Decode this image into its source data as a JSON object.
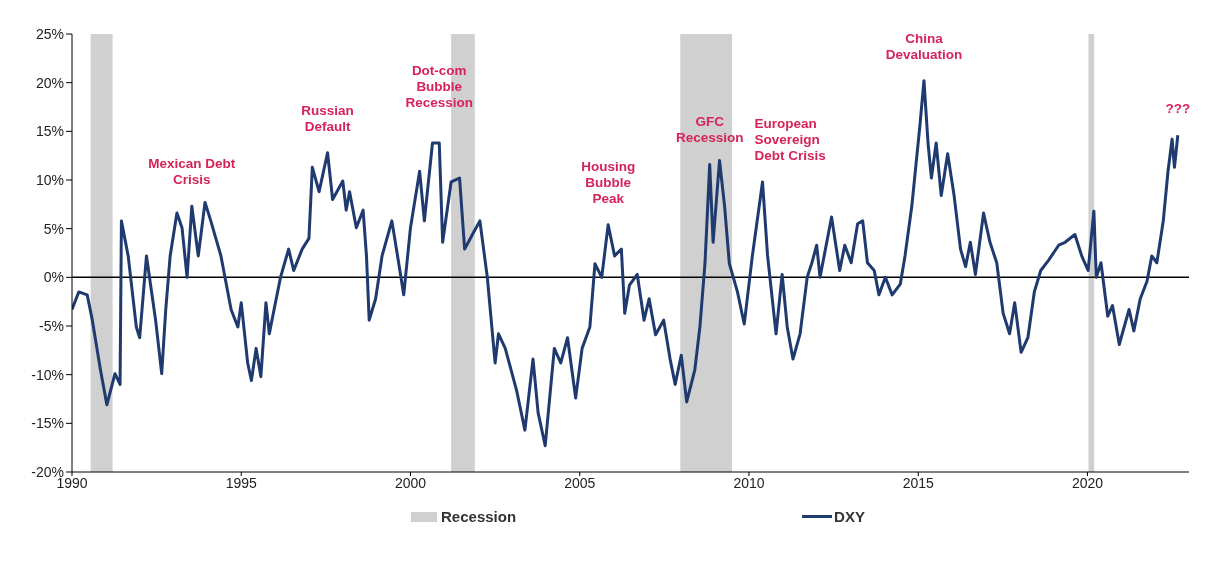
{
  "chart_data": {
    "type": "line",
    "xlim": [
      1990,
      2023
    ],
    "xticks": [
      1990,
      1995,
      2000,
      2005,
      2010,
      2015,
      2020
    ],
    "ylim": [
      -20,
      25
    ],
    "yticks": [
      {
        "value": -20,
        "label": "-20%"
      },
      {
        "value": -15,
        "label": "-15%"
      },
      {
        "value": -10,
        "label": "-10%"
      },
      {
        "value": -5,
        "label": "-5%"
      },
      {
        "value": 0,
        "label": "0%"
      },
      {
        "value": 5,
        "label": "5%"
      },
      {
        "value": 10,
        "label": "10%"
      },
      {
        "value": 15,
        "label": "15%"
      },
      {
        "value": 20,
        "label": "20%"
      },
      {
        "value": 25,
        "label": "25%"
      }
    ],
    "legend": "bottom",
    "marker": "none",
    "line_style": "solid",
    "ref_lines": [
      {
        "axis": "y",
        "value": 0,
        "color": "#000000"
      }
    ],
    "bands": [
      {
        "axis": "x",
        "from": 1990.55,
        "to": 1991.2,
        "label": "Recession",
        "color": "#d0d0d0"
      },
      {
        "axis": "x",
        "from": 2001.2,
        "to": 2001.9,
        "color": "#d0d0d0"
      },
      {
        "axis": "x",
        "from": 2007.97,
        "to": 2009.5,
        "color": "#d0d0d0"
      },
      {
        "axis": "x",
        "from": 2020.03,
        "to": 2020.2,
        "color": "#d0d0d0"
      }
    ],
    "annotations": [
      {
        "text": "Mexican Debt\nCrisis",
        "x": 1993.54,
        "y": 7.3
      },
      {
        "text": "Russian\nDefault",
        "x": 1997.55,
        "y": 12.8
      },
      {
        "text": "Dot-com\nBubble\nRecession",
        "x": 2000.85,
        "y": 13.8
      },
      {
        "text": "Housing\nBubble\nPeak",
        "x": 2005.84,
        "y": 5.4
      },
      {
        "text": "GFC\nRecession",
        "x": 2008.84,
        "y": 11.6
      },
      {
        "text": "European\nSovereign\nDebt Crisis",
        "x": 2010.4,
        "y": 9.8
      },
      {
        "text": "China\nDevaluation",
        "x": 2015.17,
        "y": 20.2
      },
      {
        "text": "???",
        "x": 2022.67,
        "y": 14.6
      }
    ],
    "series": [
      {
        "name": "DXY",
        "color": "#1f3a6e",
        "x": [
          1990.0,
          1990.2,
          1990.45,
          1990.6,
          1990.84,
          1991.03,
          1991.27,
          1991.42,
          1991.46,
          1991.66,
          1991.9,
          1992.0,
          1992.2,
          1992.47,
          1992.65,
          1992.77,
          1992.9,
          1993.1,
          1993.25,
          1993.4,
          1993.54,
          1993.73,
          1993.93,
          1994.1,
          1994.4,
          1994.7,
          1994.9,
          1995.0,
          1995.19,
          1995.3,
          1995.44,
          1995.58,
          1995.73,
          1995.83,
          1995.97,
          1996.16,
          1996.4,
          1996.55,
          1996.8,
          1997.0,
          1997.1,
          1997.3,
          1997.55,
          1997.7,
          1998.0,
          1998.1,
          1998.2,
          1998.4,
          1998.6,
          1998.7,
          1998.78,
          1998.97,
          1999.16,
          1999.45,
          1999.65,
          1999.8,
          2000.0,
          2000.27,
          2000.41,
          2000.65,
          2000.85,
          2000.95,
          2001.2,
          2001.45,
          2001.6,
          2001.83,
          2002.05,
          2002.27,
          2002.5,
          2002.6,
          2002.8,
          2003.14,
          2003.38,
          2003.62,
          2003.77,
          2003.98,
          2004.25,
          2004.44,
          2004.64,
          2004.88,
          2005.07,
          2005.3,
          2005.45,
          2005.65,
          2005.84,
          2006.03,
          2006.23,
          2006.33,
          2006.47,
          2006.7,
          2006.9,
          2007.05,
          2007.24,
          2007.48,
          2007.67,
          2007.82,
          2008.0,
          2008.16,
          2008.4,
          2008.55,
          2008.7,
          2008.84,
          2008.94,
          2009.13,
          2009.28,
          2009.42,
          2009.66,
          2009.86,
          2010.1,
          2010.4,
          2010.55,
          2010.8,
          2010.98,
          2011.13,
          2011.3,
          2011.51,
          2011.72,
          2011.86,
          2012.0,
          2012.1,
          2012.44,
          2012.68,
          2012.83,
          2013.02,
          2013.21,
          2013.36,
          2013.5,
          2013.7,
          2013.84,
          2014.03,
          2014.23,
          2014.47,
          2014.61,
          2014.81,
          2015.05,
          2015.17,
          2015.29,
          2015.39,
          2015.53,
          2015.68,
          2015.87,
          2016.06,
          2016.25,
          2016.4,
          2016.54,
          2016.69,
          2016.93,
          2017.12,
          2017.32,
          2017.51,
          2017.7,
          2017.85,
          2018.04,
          2018.24,
          2018.43,
          2018.62,
          2018.86,
          2019.15,
          2019.34,
          2019.63,
          2019.83,
          2020.02,
          2020.19,
          2020.26,
          2020.4,
          2020.6,
          2020.74,
          2020.94,
          2021.23,
          2021.37,
          2021.56,
          2021.76,
          2021.9,
          2022.05,
          2022.24,
          2022.38,
          2022.5,
          2022.57,
          2022.67
        ],
        "values": [
          -3.3,
          -1.5,
          -1.8,
          -4.4,
          -9.5,
          -13.1,
          -9.9,
          -11,
          5.8,
          2.2,
          -5.1,
          -6.2,
          2.2,
          -4.4,
          -9.9,
          -3.3,
          2.2,
          6.6,
          5.1,
          0,
          7.3,
          2.2,
          7.7,
          5.8,
          2.2,
          -3.3,
          -5.1,
          -2.6,
          -8.8,
          -10.6,
          -7.3,
          -10.2,
          -2.6,
          -5.8,
          -3.3,
          0,
          2.9,
          0.7,
          2.9,
          4,
          11.3,
          8.8,
          12.8,
          8,
          9.9,
          6.9,
          8.8,
          5.1,
          6.9,
          2.2,
          -4.4,
          -2.2,
          2.2,
          5.8,
          1.5,
          -1.8,
          5.1,
          10.9,
          5.8,
          13.8,
          13.8,
          3.6,
          9.8,
          10.2,
          2.9,
          4.4,
          5.8,
          0,
          -8.8,
          -5.8,
          -7.3,
          -11.7,
          -15.7,
          -8.4,
          -13.9,
          -17.3,
          -7.3,
          -8.8,
          -6.2,
          -12.4,
          -7.3,
          -5.1,
          1.4,
          0,
          5.4,
          2.2,
          2.9,
          -3.7,
          -0.8,
          0.3,
          -4.4,
          -2.2,
          -5.9,
          -4.4,
          -8.4,
          -11,
          -8,
          -12.8,
          -9.5,
          -5.1,
          1.4,
          11.6,
          3.6,
          12,
          7.3,
          1.4,
          -1.5,
          -4.8,
          2.2,
          9.8,
          2.2,
          -5.8,
          0.3,
          -5.1,
          -8.4,
          -5.8,
          0,
          1.5,
          3.3,
          0,
          6.2,
          0.7,
          3.3,
          1.5,
          5.5,
          5.8,
          1.5,
          0.7,
          -1.8,
          0,
          -1.8,
          -0.7,
          2.2,
          7.3,
          15.6,
          20.2,
          13.8,
          10.2,
          13.8,
          8.4,
          12.7,
          8.4,
          2.9,
          1.1,
          3.6,
          0.3,
          6.6,
          3.6,
          1.5,
          -3.7,
          -5.8,
          -2.6,
          -7.7,
          -6.2,
          -1.5,
          0.7,
          1.8,
          3.3,
          3.6,
          4.4,
          2.2,
          0.7,
          6.8,
          0,
          1.5,
          -4,
          -2.9,
          -6.9,
          -3.3,
          -5.5,
          -2.2,
          -0.4,
          2.2,
          1.5,
          5.8,
          10.9,
          14.2,
          11.3,
          14.6
        ]
      }
    ]
  }
}
